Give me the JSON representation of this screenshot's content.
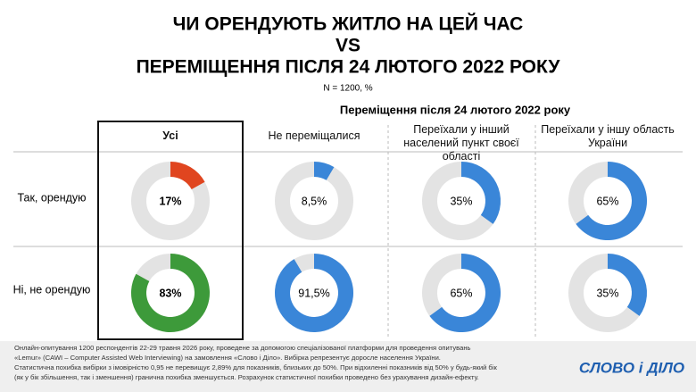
{
  "chart_data": {
    "type": "donut",
    "title": [
      "ЧИ ОРЕНДУЮТЬ ЖИТЛО НА ЦЕЙ ЧАС",
      "VS",
      "ПЕРЕМІЩЕННЯ ПІСЛЯ 24 ЛЮТОГО 2022 РОКУ"
    ],
    "subtitle": "N = 1200, %",
    "group_label": "Переміщення після 24 лютого 2022 року",
    "categories": [
      "Усі",
      "Не переміщалися",
      "Переїхали у інший населений пункт своєї області",
      "Переїхали у іншу область України"
    ],
    "series": [
      {
        "name": "Так, орендую",
        "colors": [
          "#e0451f",
          "#3a86d8",
          "#3a86d8",
          "#3a86d8"
        ],
        "values": [
          17,
          8.5,
          35,
          65
        ],
        "value_labels": [
          "17%",
          "8,5%",
          "35%",
          "65%"
        ]
      },
      {
        "name": "Ні, не орендую",
        "colors": [
          "#3d9a3a",
          "#3a86d8",
          "#3a86d8",
          "#3a86d8"
        ],
        "values": [
          83,
          91.5,
          65,
          35
        ],
        "value_labels": [
          "83%",
          "91,5%",
          "65%",
          "35%"
        ]
      }
    ],
    "rest_color": "#e3e3e3",
    "footnote": [
      "Онлайн-опитування 1200 респондентів 22-29 травня 2026 року, проведене за допомогою спеціалізованої платформи для проведення опитувань",
      "«Lemur» (CAWI – Computer Assisted Web Interviewing) на замовлення «Слово і Діло». Вибірка репрезентує доросле населення України.",
      "Статистична похибка вибірки з імовірністю 0,95 не перевищує 2,89% для показників, близьких до 50%. При відхиленні показників від 50% у будь-який бік",
      "(як у бік збільшення, так і зменшення) гранична похибка зменшується. Розрахунок статистичної похибки проведено без урахування дизайн-ефекту."
    ],
    "logo": "СЛОВО і ДІЛО"
  }
}
